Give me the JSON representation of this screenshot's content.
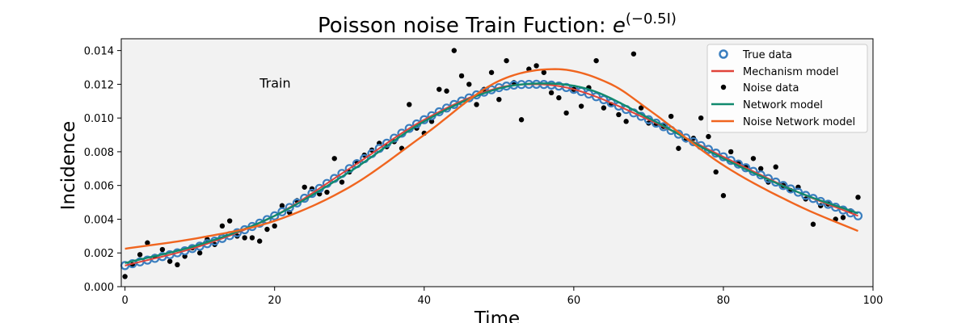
{
  "chart_data": {
    "type": "line",
    "title_text": "Poisson noise Train Fuction: ",
    "title_math_base": "e",
    "title_math_exp": "(−0.5I)",
    "xlabel": "Time",
    "ylabel": "Incidence",
    "xlim": [
      -0.5,
      100
    ],
    "ylim": [
      0,
      0.0147
    ],
    "x_ticks": [
      0,
      20,
      40,
      60,
      80,
      100
    ],
    "y_ticks": [
      0.0,
      0.002,
      0.004,
      0.006,
      0.008,
      0.01,
      0.012,
      0.014
    ],
    "y_tick_labels": [
      "0.000",
      "0.002",
      "0.004",
      "0.006",
      "0.008",
      "0.010",
      "0.012",
      "0.014"
    ],
    "annotation": {
      "text": "Train",
      "x": 18,
      "y": 0.0121
    },
    "grid": false,
    "legend_position": "top-right",
    "legend": [
      "True data",
      "Mechanism model",
      "Noise data",
      "Network model",
      "Noise Network model"
    ],
    "colors": {
      "true_data": "#3a7ebf",
      "mechanism": "#e0443a",
      "noise": "#000000",
      "network": "#118a6e",
      "noise_network": "#f0651f",
      "plot_bg": "#f2f2f2"
    },
    "curves": {
      "x_start": 0,
      "x_end": 98,
      "true_curve": {
        "x": [
          0,
          10,
          20,
          30,
          40,
          50,
          55,
          60,
          70,
          80,
          90,
          98
        ],
        "y": [
          0.00125,
          0.0024,
          0.0042,
          0.007,
          0.0099,
          0.0118,
          0.012,
          0.0117,
          0.0099,
          0.0077,
          0.0056,
          0.0042
        ]
      },
      "network_curve": {
        "x": [
          0,
          10,
          20,
          30,
          40,
          50,
          56,
          62,
          70,
          80,
          90,
          98
        ],
        "y": [
          0.0014,
          0.0025,
          0.0042,
          0.0068,
          0.0098,
          0.01175,
          0.01205,
          0.0117,
          0.01,
          0.0076,
          0.0056,
          0.00435
        ]
      },
      "noise_network_curve": {
        "x": [
          0,
          10,
          20,
          30,
          40,
          50,
          57.5,
          65,
          70,
          80,
          90,
          98
        ],
        "y": [
          0.00225,
          0.0029,
          0.0039,
          0.0059,
          0.009,
          0.0122,
          0.0129,
          0.012,
          0.0105,
          0.0072,
          0.0048,
          0.0033
        ]
      }
    },
    "noise_points": {
      "x": [
        0,
        1,
        2,
        3,
        4,
        5,
        6,
        7,
        8,
        9,
        10,
        11,
        12,
        13,
        14,
        15,
        16,
        17,
        18,
        19,
        20,
        21,
        22,
        23,
        24,
        25,
        26,
        27,
        28,
        29,
        30,
        31,
        32,
        33,
        34,
        35,
        36,
        37,
        38,
        39,
        40,
        41,
        42,
        43,
        44,
        45,
        46,
        47,
        48,
        49,
        50,
        51,
        52,
        53,
        54,
        55,
        56,
        57,
        58,
        59,
        60,
        61,
        62,
        63,
        64,
        65,
        66,
        67,
        68,
        69,
        70,
        71,
        72,
        73,
        74,
        75,
        76,
        77,
        78,
        79,
        80,
        81,
        82,
        83,
        84,
        85,
        86,
        87,
        88,
        89,
        90,
        91,
        92,
        93,
        94,
        95,
        96,
        97,
        98
      ],
      "y": [
        0.0006,
        0.0013,
        0.0019,
        0.0026,
        0.0018,
        0.0022,
        0.0015,
        0.0013,
        0.0018,
        0.0023,
        0.002,
        0.0028,
        0.0025,
        0.0036,
        0.0039,
        0.003,
        0.0029,
        0.0029,
        0.0027,
        0.0034,
        0.0036,
        0.0048,
        0.0044,
        0.0051,
        0.0059,
        0.0058,
        0.0055,
        0.0056,
        0.0076,
        0.0062,
        0.0068,
        0.0074,
        0.0078,
        0.0081,
        0.0085,
        0.0083,
        0.0086,
        0.0082,
        0.0108,
        0.0094,
        0.0091,
        0.0098,
        0.0117,
        0.0116,
        0.014,
        0.0125,
        0.012,
        0.0108,
        0.0117,
        0.0127,
        0.0111,
        0.0134,
        0.0121,
        0.0099,
        0.0129,
        0.0131,
        0.0127,
        0.0115,
        0.0112,
        0.0103,
        0.0117,
        0.0107,
        0.0118,
        0.0134,
        0.0106,
        0.0108,
        0.0102,
        0.0098,
        0.0138,
        0.0106,
        0.0097,
        0.0096,
        0.0095,
        0.0101,
        0.0082,
        0.0087,
        0.0088,
        0.01,
        0.0089,
        0.0068,
        0.0054,
        0.008,
        0.0073,
        0.0071,
        0.0076,
        0.007,
        0.0062,
        0.0071,
        0.006,
        0.0057,
        0.0059,
        0.0052,
        0.0037,
        0.0048,
        0.0049,
        0.004,
        0.0041,
        0.0045,
        0.0053
      ]
    }
  }
}
